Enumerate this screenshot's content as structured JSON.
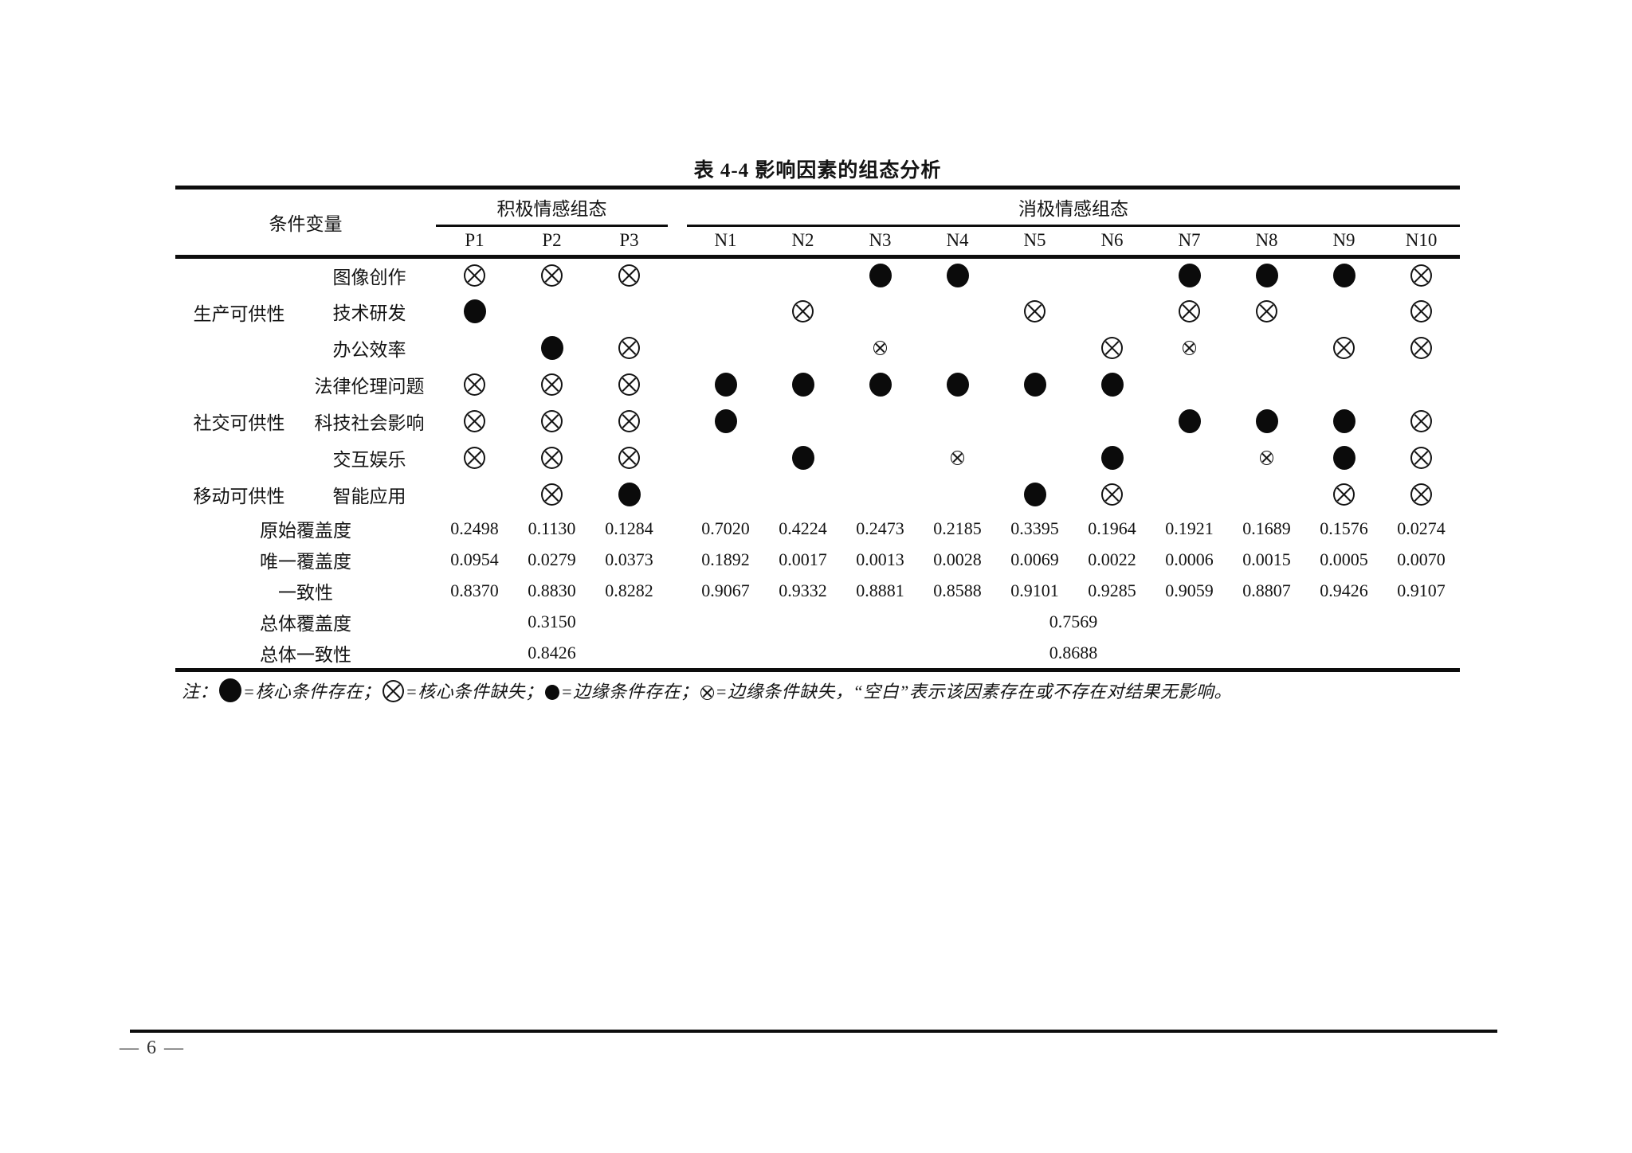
{
  "page": {
    "title": "表 4-4 影响因素的组态分析",
    "page_number": "— 6 —",
    "colors": {
      "ink": "#141414",
      "paper": "#ffffff"
    }
  },
  "table": {
    "corner_label": "条件变量",
    "groups": [
      {
        "label": "积极情感组态",
        "columns": [
          "P1",
          "P2",
          "P3"
        ]
      },
      {
        "label": "消极情感组态",
        "columns": [
          "N1",
          "N2",
          "N3",
          "N4",
          "N5",
          "N6",
          "N7",
          "N8",
          "N9",
          "N10"
        ]
      }
    ],
    "symbol_legend": {
      "CP": "核心条件存在",
      "CA": "核心条件缺失",
      "pp": "边缘条件存在",
      "pa": "边缘条件缺失",
      "": "空白（该因素存在或不存在对结果无影响）"
    },
    "condition_rows": [
      {
        "group": "生产可供性",
        "group_span": 3,
        "label": "图像创作",
        "cells": [
          "CA",
          "CA",
          "CA",
          "",
          "",
          "CP",
          "CP",
          "",
          "",
          "CP",
          "CP",
          "CP",
          "CA"
        ]
      },
      {
        "group": "",
        "group_span": 0,
        "label": "技术研发",
        "cells": [
          "CP",
          "",
          "",
          "",
          "CA",
          "",
          "",
          "CA",
          "",
          "CA",
          "CA",
          "",
          "CA"
        ]
      },
      {
        "group": "",
        "group_span": 0,
        "label": "办公效率",
        "cells": [
          "",
          "CP",
          "CA",
          "",
          "",
          "pa",
          "",
          "",
          "CA",
          "pa",
          "",
          "CA",
          "CA"
        ]
      },
      {
        "group": "社交可供性",
        "group_span": 3,
        "label": "法律伦理问题",
        "cells": [
          "CA",
          "CA",
          "CA",
          "CP",
          "CP",
          "CP",
          "CP",
          "CP",
          "CP",
          "",
          "",
          "",
          ""
        ]
      },
      {
        "group": "",
        "group_span": 0,
        "label": "科技社会影响",
        "cells": [
          "CA",
          "CA",
          "CA",
          "CP",
          "",
          "",
          "",
          "",
          "",
          "CP",
          "CP",
          "CP",
          "CA"
        ]
      },
      {
        "group": "",
        "group_span": 0,
        "label": "交互娱乐",
        "cells": [
          "CA",
          "CA",
          "CA",
          "",
          "CP",
          "",
          "pa",
          "",
          "CP",
          "",
          "pa",
          "CP",
          "CA"
        ]
      },
      {
        "group": "移动可供性",
        "group_span": 1,
        "label": "智能应用",
        "cells": [
          "",
          "CA",
          "CP",
          "",
          "",
          "",
          "",
          "CP",
          "CA",
          "",
          "",
          "CA",
          "CA"
        ]
      }
    ],
    "stat_rows": [
      {
        "label": "原始覆盖度",
        "values": [
          "0.2498",
          "0.1130",
          "0.1284",
          "0.7020",
          "0.4224",
          "0.2473",
          "0.2185",
          "0.3395",
          "0.1964",
          "0.1921",
          "0.1689",
          "0.1576",
          "0.0274"
        ]
      },
      {
        "label": "唯一覆盖度",
        "values": [
          "0.0954",
          "0.0279",
          "0.0373",
          "0.1892",
          "0.0017",
          "0.0013",
          "0.0028",
          "0.0069",
          "0.0022",
          "0.0006",
          "0.0015",
          "0.0005",
          "0.0070"
        ]
      },
      {
        "label": "一致性",
        "values": [
          "0.8370",
          "0.8830",
          "0.8282",
          "0.9067",
          "0.9332",
          "0.8881",
          "0.8588",
          "0.9101",
          "0.9285",
          "0.9059",
          "0.8807",
          "0.9426",
          "0.9107"
        ]
      }
    ],
    "total_rows": [
      {
        "label": "总体覆盖度",
        "positive": "0.3150",
        "negative": "0.7569"
      },
      {
        "label": "总体一致性",
        "positive": "0.8426",
        "negative": "0.8688"
      }
    ]
  },
  "note": {
    "prefix": "注：",
    "segments": [
      {
        "symbol": "CP",
        "text": "=核心条件存在；"
      },
      {
        "symbol": "CA",
        "text": "=核心条件缺失；"
      },
      {
        "symbol": "pp",
        "text": "=边缘条件存在；"
      },
      {
        "symbol": "pa",
        "text": "=边缘条件缺失，“空白”表示该因素存在或不存在对结果无影响。"
      }
    ]
  }
}
